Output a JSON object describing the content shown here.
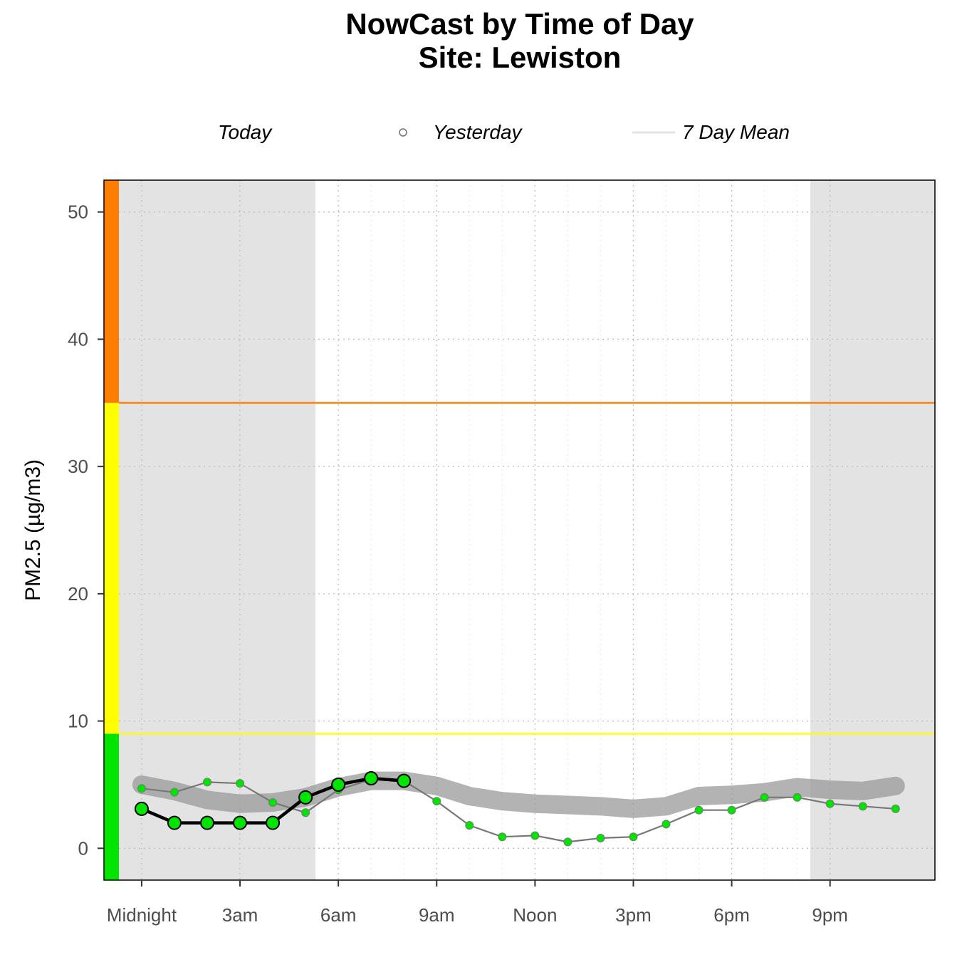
{
  "chart_data": {
    "type": "line",
    "title": "NowCast by Time of Day",
    "subtitle": "Site: Lewiston",
    "ylabel": "PM2.5 (µg/m3)",
    "xlabel": "",
    "ylim": [
      -2.5,
      52.5
    ],
    "xlim": [
      -1.15,
      24.2
    ],
    "y_ticks": [
      0,
      10,
      20,
      30,
      40,
      50
    ],
    "x_ticks": [
      {
        "hour": 0,
        "label": "Midnight"
      },
      {
        "hour": 3,
        "label": "3am"
      },
      {
        "hour": 6,
        "label": "6am"
      },
      {
        "hour": 9,
        "label": "9am"
      },
      {
        "hour": 12,
        "label": "Noon"
      },
      {
        "hour": 15,
        "label": "3pm"
      },
      {
        "hour": 18,
        "label": "6pm"
      },
      {
        "hour": 21,
        "label": "9pm"
      }
    ],
    "grid": true,
    "legend_position": "top",
    "legend": [
      {
        "label": "Today"
      },
      {
        "label": "Yesterday"
      },
      {
        "label": "7 Day Mean"
      }
    ],
    "night_shading": [
      {
        "start_hour": -1.15,
        "end_hour": 5.3
      },
      {
        "start_hour": 20.4,
        "end_hour": 24.2
      }
    ],
    "aqi_bands": [
      {
        "from": -2.5,
        "to": 9,
        "color": "#00e400"
      },
      {
        "from": 9,
        "to": 35,
        "color": "#ffff00"
      },
      {
        "from": 35,
        "to": 52.5,
        "color": "#ff7e00"
      }
    ],
    "thresholds": [
      {
        "value": 9,
        "color": "#ffff00"
      },
      {
        "value": 35,
        "color": "#ff7e00"
      }
    ],
    "series": [
      {
        "name": "7 Day Mean",
        "hours": [
          0,
          1,
          2,
          3,
          4,
          5,
          6,
          7,
          8,
          9,
          10,
          11,
          12,
          13,
          14,
          15,
          16,
          17,
          18,
          19,
          20,
          21,
          22,
          23
        ],
        "values": [
          5.0,
          4.5,
          3.8,
          3.5,
          3.6,
          4.0,
          4.8,
          5.3,
          5.3,
          4.9,
          4.1,
          3.7,
          3.5,
          3.4,
          3.3,
          3.1,
          3.3,
          4.1,
          4.2,
          4.4,
          4.8,
          4.6,
          4.5,
          4.9
        ]
      },
      {
        "name": "Yesterday",
        "hours": [
          0,
          1,
          2,
          3,
          4,
          5,
          6,
          7,
          8,
          9,
          10,
          11,
          12,
          13,
          14,
          15,
          16,
          17,
          18,
          19,
          20,
          21,
          22,
          23
        ],
        "values": [
          4.7,
          4.4,
          5.2,
          5.1,
          3.6,
          2.8,
          4.6,
          5.4,
          5.3,
          3.7,
          1.8,
          0.9,
          1.0,
          0.5,
          0.8,
          0.9,
          1.9,
          3.0,
          3.0,
          4.0,
          4.0,
          3.5,
          3.3,
          3.1
        ]
      },
      {
        "name": "Today",
        "hours": [
          0,
          1,
          2,
          3,
          4,
          5,
          6,
          7,
          8
        ],
        "values": [
          3.1,
          2.0,
          2.0,
          2.0,
          2.0,
          4.0,
          5.0,
          5.5,
          5.3
        ]
      }
    ]
  },
  "colors": {
    "night_shade": "#e3e3e3",
    "mean_line": "#9a9a9a",
    "yesterday_line": "#777777",
    "point_fill": "#00e400",
    "today_line": "#000000",
    "legend_mean_line": "#e3e3e3"
  }
}
